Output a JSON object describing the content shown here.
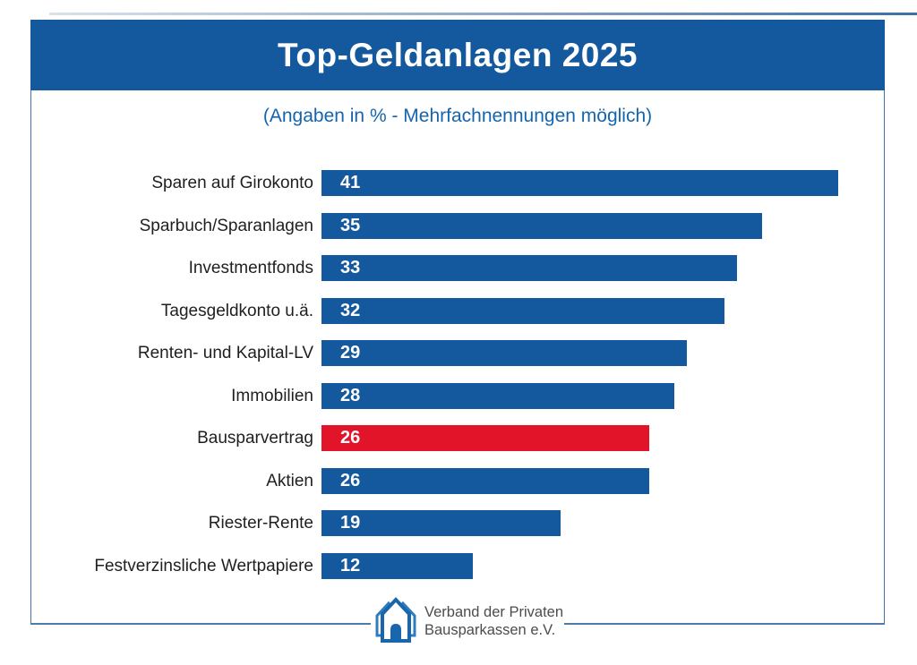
{
  "header": {
    "title": "Top-Geldanlagen 2025"
  },
  "subtitle": "(Angaben in % - Mehrfachnennungen möglich)",
  "colors": {
    "header_bg": "#14599e",
    "bar_blue": "#14599e",
    "bar_red": "#e1142a",
    "subtitle_text": "#1465ae",
    "frame_border": "#3f74aa",
    "footer_line": "#4d7ca8",
    "logo_blue": "#1a66ad",
    "footer_text": "#4c4c4e"
  },
  "chart_data": {
    "type": "bar",
    "orientation": "horizontal",
    "title": "Top-Geldanlagen 2025",
    "subtitle": "(Angaben in % - Mehrfachnennungen möglich)",
    "unit": "%",
    "categories": [
      "Sparen auf Girokonto",
      "Sparbuch/Sparanlagen",
      "Investmentfonds",
      "Tagesgeldkonto u.ä.",
      "Renten- und Kapital-LV",
      "Immobilien",
      "Bausparvertrag",
      "Aktien",
      "Riester-Rente",
      "Festverzinsliche Wertpapiere"
    ],
    "values": [
      41,
      35,
      33,
      32,
      29,
      28,
      26,
      26,
      19,
      12
    ],
    "bar_color": "#14599e",
    "highlight": {
      "index": 6,
      "category": "Bausparvertrag",
      "color": "#e1142a"
    },
    "value_labels": "inside-start",
    "xlim": [
      0,
      41
    ],
    "grid": false,
    "legend": false
  },
  "footer": {
    "logo_icon": "houses-icon",
    "org_line1": "Verband der Privaten",
    "org_line2": "Bausparkassen e.V."
  }
}
